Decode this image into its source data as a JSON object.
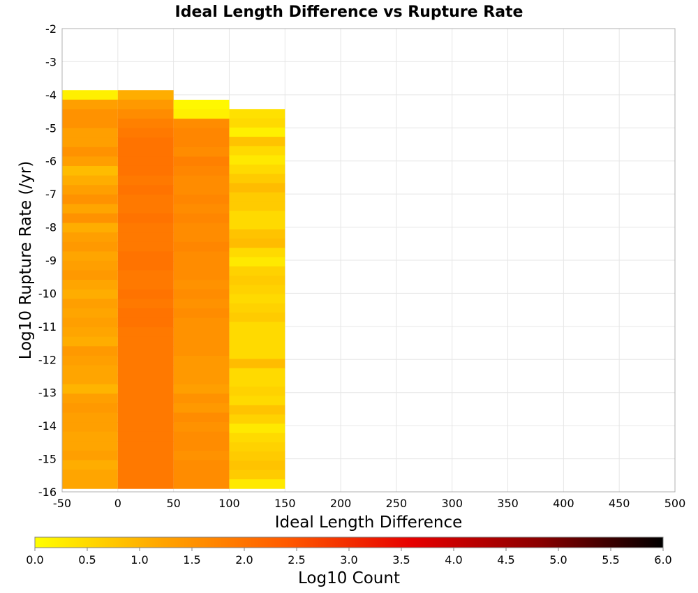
{
  "chart_data": {
    "type": "heatmap",
    "title": "Ideal Length Difference vs Rupture Rate",
    "xlabel": "Ideal Length Difference",
    "ylabel": "Log10 Rupture Rate (/yr)",
    "xlim": [
      -50,
      500
    ],
    "ylim": [
      -16,
      -2
    ],
    "x_ticks": [
      -50,
      0,
      50,
      100,
      150,
      200,
      250,
      300,
      350,
      400,
      450,
      500
    ],
    "y_ticks": [
      -2,
      -3,
      -4,
      -5,
      -6,
      -7,
      -8,
      -9,
      -10,
      -11,
      -12,
      -13,
      -14,
      -15,
      -16
    ],
    "bin_width_x": 50,
    "bin_height_y": 0.2857,
    "grid": true,
    "colorbar": {
      "label": "Log10 Count",
      "min": 0.0,
      "max": 6.0,
      "ticks": [
        "0.0",
        "0.5",
        "1.0",
        "1.5",
        "2.0",
        "2.5",
        "3.0",
        "3.5",
        "4.0",
        "4.5",
        "5.0",
        "5.5",
        "6.0"
      ],
      "colors": [
        "#ffff00",
        "#ffa500",
        "#ff5a00",
        "#e60000",
        "#8c0000",
        "#000000"
      ]
    },
    "cells": [
      {
        "x": -50,
        "y_top": -3.86,
        "y_bottom": -15.9,
        "rows": [
          0.2,
          1.3,
          1.5,
          1.5,
          1.3,
          1.3,
          1.5,
          1.3,
          0.9,
          1.1,
          1.3,
          1.5,
          1.2,
          1.5,
          1.1,
          1.3,
          1.4,
          1.2,
          1.3,
          1.4,
          1.2,
          1.1,
          1.3,
          1.2,
          1.3,
          1.2,
          1.1,
          1.4,
          1.3,
          1.2,
          1.2,
          1.0,
          1.3,
          1.4,
          1.3,
          1.3,
          1.2,
          1.2,
          1.3,
          1.1,
          1.2,
          1.2
        ]
      },
      {
        "x": 0,
        "y_top": -3.86,
        "y_bottom": -15.9,
        "rows": [
          1.1,
          1.4,
          1.6,
          1.8,
          1.9,
          2.0,
          2.0,
          2.0,
          2.0,
          1.9,
          2.0,
          1.9,
          1.9,
          2.0,
          1.9,
          1.9,
          1.9,
          2.0,
          2.0,
          1.9,
          1.9,
          2.0,
          1.9,
          2.0,
          2.0,
          1.9,
          1.9,
          1.9,
          1.9,
          1.9,
          1.9,
          1.9,
          1.9,
          1.9,
          1.9,
          1.9,
          1.9,
          1.9,
          1.9,
          1.9,
          1.9,
          1.9
        ]
      },
      {
        "x": 50,
        "y_top": -4.15,
        "y_bottom": -15.9,
        "rows": [
          0.1,
          0.2,
          1.6,
          1.7,
          1.7,
          1.6,
          1.8,
          1.7,
          1.6,
          1.6,
          1.7,
          1.6,
          1.7,
          1.6,
          1.6,
          1.7,
          1.6,
          1.6,
          1.6,
          1.5,
          1.6,
          1.5,
          1.6,
          1.5,
          1.5,
          1.5,
          1.5,
          1.4,
          1.4,
          1.4,
          1.3,
          1.5,
          1.4,
          1.6,
          1.5,
          1.6,
          1.6,
          1.5,
          1.6,
          1.6,
          1.6
        ]
      },
      {
        "x": 100,
        "y_top": -4.43,
        "y_bottom": -15.9,
        "rows": [
          0.4,
          0.5,
          0.2,
          0.8,
          0.5,
          0.3,
          0.5,
          0.7,
          0.9,
          0.7,
          0.7,
          0.5,
          0.5,
          0.8,
          0.9,
          0.5,
          0.3,
          0.6,
          0.7,
          0.6,
          0.5,
          0.6,
          0.7,
          0.5,
          0.5,
          0.5,
          0.5,
          0.9,
          0.5,
          0.5,
          0.6,
          0.5,
          0.8,
          0.6,
          0.3,
          0.5,
          0.6,
          0.7,
          0.8,
          0.7,
          0.3
        ]
      }
    ]
  }
}
